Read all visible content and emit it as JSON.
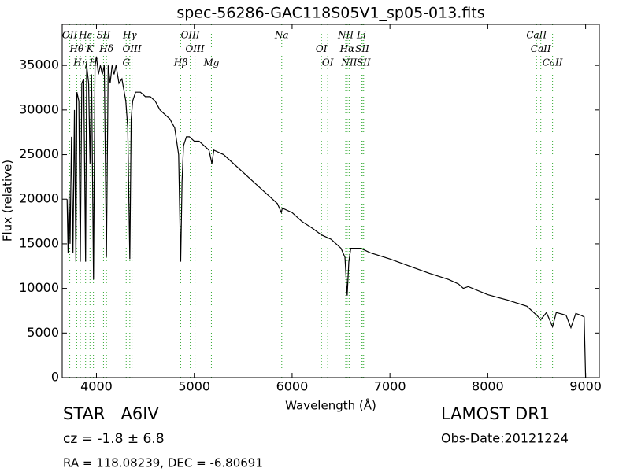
{
  "chart_data": {
    "type": "line",
    "title": "spec-56286-GAC118S05V1_sp05-013.fits",
    "xlabel": "Wavelength (Å)",
    "ylabel": "Flux (relative)",
    "xlim": [
      3650,
      9140
    ],
    "ylim": [
      0,
      39600
    ],
    "xticks": [
      4000,
      5000,
      6000,
      7000,
      8000,
      9000
    ],
    "yticks": [
      0,
      5000,
      10000,
      15000,
      20000,
      25000,
      30000,
      35000
    ],
    "color": "#000000",
    "line_color": "#33aa33",
    "x": [
      3700,
      3710,
      3720,
      3730,
      3745,
      3760,
      3775,
      3790,
      3800,
      3820,
      3835,
      3850,
      3870,
      3889,
      3900,
      3920,
      3934,
      3950,
      3970,
      3985,
      4000,
      4020,
      4040,
      4060,
      4080,
      4102,
      4120,
      4140,
      4160,
      4180,
      4200,
      4230,
      4260,
      4300,
      4320,
      4341,
      4355,
      4370,
      4400,
      4450,
      4500,
      4550,
      4600,
      4650,
      4700,
      4750,
      4800,
      4840,
      4861,
      4875,
      4890,
      4920,
      4950,
      5000,
      5050,
      5100,
      5150,
      5180,
      5200,
      5300,
      5400,
      5500,
      5600,
      5700,
      5800,
      5850,
      5890,
      5900,
      6000,
      6100,
      6200,
      6300,
      6400,
      6500,
      6540,
      6563,
      6580,
      6600,
      6700,
      6800,
      7000,
      7200,
      7400,
      7600,
      7700,
      7750,
      7800,
      8000,
      8200,
      8400,
      8500,
      8542,
      8600,
      8662,
      8700,
      8800,
      8850,
      8900,
      8950,
      8985,
      9000
    ],
    "values": [
      20000,
      14000,
      21000,
      15000,
      27000,
      14000,
      30000,
      13000,
      32000,
      31000,
      13000,
      33000,
      33500,
      13000,
      35000,
      33000,
      24000,
      34000,
      11000,
      35000,
      36000,
      34000,
      35000,
      34000,
      35000,
      13500,
      35000,
      33000,
      35000,
      34000,
      35000,
      33000,
      33500,
      31000,
      28000,
      13300,
      29000,
      31000,
      32000,
      32000,
      31500,
      31500,
      31000,
      30000,
      29500,
      29000,
      28000,
      25000,
      13000,
      22000,
      26000,
      27000,
      27000,
      26500,
      26500,
      26000,
      25500,
      24000,
      25500,
      25000,
      24000,
      23000,
      22000,
      21000,
      20000,
      19500,
      18500,
      19000,
      18500,
      17500,
      16800,
      16000,
      15500,
      14500,
      13500,
      9200,
      13000,
      14500,
      14500,
      14000,
      13300,
      12500,
      11700,
      11000,
      10500,
      10000,
      10200,
      9300,
      8700,
      8000,
      7000,
      6500,
      7300,
      5700,
      7300,
      7000,
      5600,
      7200,
      7000,
      6800,
      0
    ],
    "lines": [
      {
        "label": "OII",
        "x": 3727
      },
      {
        "label": "Hθ",
        "x": 3798
      },
      {
        "label": "Hη",
        "x": 3835
      },
      {
        "label": "Hε",
        "x": 3889
      },
      {
        "label": "K",
        "x": 3934
      },
      {
        "label": "H",
        "x": 3969
      },
      {
        "label": "SII",
        "x": 4072
      },
      {
        "label": "Hδ",
        "x": 4102
      },
      {
        "label": "G",
        "x": 4304
      },
      {
        "label": "Hγ",
        "x": 4341
      },
      {
        "label": "OIII",
        "x": 4363
      },
      {
        "label": "Hβ",
        "x": 4861
      },
      {
        "label": "OIII",
        "x": 4959
      },
      {
        "label": "OIII",
        "x": 5007
      },
      {
        "label": "Mg",
        "x": 5175
      },
      {
        "label": "Na",
        "x": 5894
      },
      {
        "label": "OI",
        "x": 6300
      },
      {
        "label": "OI",
        "x": 6364
      },
      {
        "label": "NII",
        "x": 6548
      },
      {
        "label": "Hα",
        "x": 6563
      },
      {
        "label": "NII",
        "x": 6583
      },
      {
        "label": "Li",
        "x": 6708
      },
      {
        "label": "SII",
        "x": 6717
      },
      {
        "label": "SII",
        "x": 6731
      },
      {
        "label": "CaII",
        "x": 8498
      },
      {
        "label": "CaII",
        "x": 8542
      },
      {
        "label": "CaII",
        "x": 8662
      }
    ],
    "class_label": "STAR   A6IV",
    "redshift": "cz = -1.8 ± 6.8",
    "coordinates": "RA = 118.08239, DEC = -6.80691",
    "survey": "LAMOST DR1",
    "obs_date": "Obs-Date:20121224"
  }
}
